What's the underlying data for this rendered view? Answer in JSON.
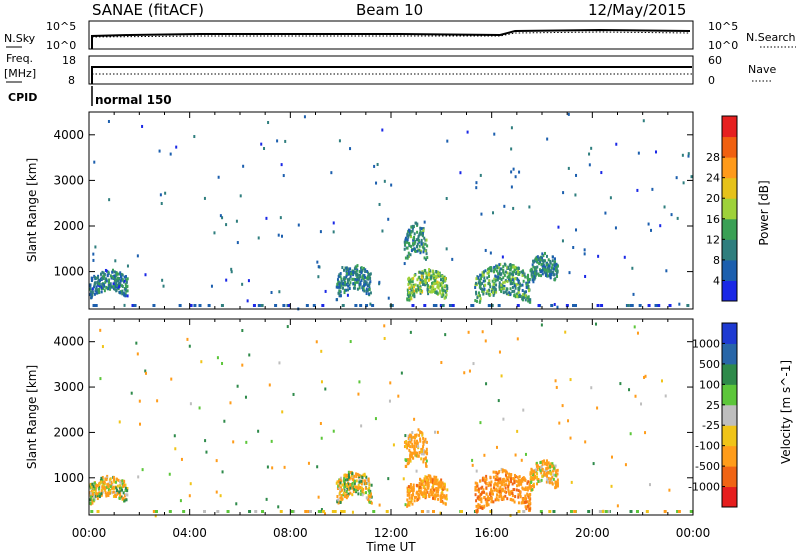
{
  "header": {
    "title": "SANAE (fitACF)",
    "beam": "Beam 10",
    "date": "12/May/2015"
  },
  "nsky_panel": {
    "left_label": "N.Sky",
    "right_label": "N.Search",
    "left_ticks": [
      "10^5",
      "10^0"
    ],
    "right_ticks": [
      "10^5",
      "10^0"
    ]
  },
  "freq_panel": {
    "left_label_line1": "Freq.",
    "left_label_line2": "[MHz]",
    "right_label": "Nave",
    "left_ticks": [
      "18",
      "8"
    ],
    "right_ticks": [
      "60",
      "0"
    ]
  },
  "cpid": {
    "label": "CPID",
    "value": "normal 150"
  },
  "chart_data": [
    {
      "type": "heatmap",
      "title": "",
      "quantity": "Power",
      "ylabel": "Slant Range [km]",
      "xlabel": "",
      "ylim": [
        180,
        4500
      ],
      "xlim": [
        "00:00",
        "24:00"
      ],
      "y_ticks": [
        "1000",
        "2000",
        "3000",
        "4000"
      ],
      "colorbar": {
        "label": "Power [dB]",
        "range": [
          0,
          32
        ],
        "ticks": [
          "4",
          "8",
          "12",
          "16",
          "20",
          "24",
          "28"
        ],
        "colors": [
          "#1a28e6",
          "#1c5fae",
          "#2f7e7e",
          "#3aa055",
          "#9ed23a",
          "#e6c21a",
          "#ff9a1a",
          "#f06010",
          "#e62020"
        ]
      },
      "echo_regions": [
        {
          "t": [
            9.8,
            11.2
          ],
          "r": [
            500,
            1100
          ],
          "value": 9
        },
        {
          "t": [
            12.5,
            13.4
          ],
          "r": [
            1300,
            2000
          ],
          "value": 10
        },
        {
          "t": [
            12.6,
            14.2
          ],
          "r": [
            450,
            1000
          ],
          "value": 14
        },
        {
          "t": [
            15.3,
            17.5
          ],
          "r": [
            350,
            1100
          ],
          "value": 11
        },
        {
          "t": [
            17.5,
            18.6
          ],
          "r": [
            800,
            1350
          ],
          "value": 9
        },
        {
          "t": [
            0.0,
            1.5
          ],
          "r": [
            500,
            1000
          ],
          "value": 8
        }
      ]
    },
    {
      "type": "heatmap",
      "title": "",
      "quantity": "Velocity",
      "ylabel": "Slant Range [km]",
      "xlabel": "Time UT",
      "ylim": [
        180,
        4500
      ],
      "xlim": [
        "00:00",
        "24:00"
      ],
      "x_ticks": [
        "00:00",
        "04:00",
        "08:00",
        "12:00",
        "16:00",
        "20:00",
        "00:00"
      ],
      "y_ticks": [
        "1000",
        "2000",
        "3000",
        "4000"
      ],
      "colorbar": {
        "label": "Velocity [m s^-1]",
        "ticks": [
          "1000",
          "500",
          "100",
          "25",
          "-25",
          "-100",
          "-500",
          "-1000"
        ],
        "colors": [
          "#1e3ad2",
          "#2866a8",
          "#2e8a4a",
          "#5cc63a",
          "#bebebe",
          "#f0c418",
          "#ff9c1a",
          "#f06414",
          "#e61e1e"
        ]
      },
      "echo_regions": [
        {
          "t": [
            9.8,
            11.2
          ],
          "r": [
            500,
            1100
          ],
          "value": -60
        },
        {
          "t": [
            12.5,
            13.4
          ],
          "r": [
            1300,
            2000
          ],
          "value": -200
        },
        {
          "t": [
            12.6,
            14.2
          ],
          "r": [
            450,
            1000
          ],
          "value": -300
        },
        {
          "t": [
            15.3,
            17.5
          ],
          "r": [
            350,
            1100
          ],
          "value": -400
        },
        {
          "t": [
            17.5,
            18.6
          ],
          "r": [
            800,
            1350
          ],
          "value": -150
        },
        {
          "t": [
            0.0,
            1.5
          ],
          "r": [
            500,
            1000
          ],
          "value": -80
        }
      ]
    }
  ]
}
